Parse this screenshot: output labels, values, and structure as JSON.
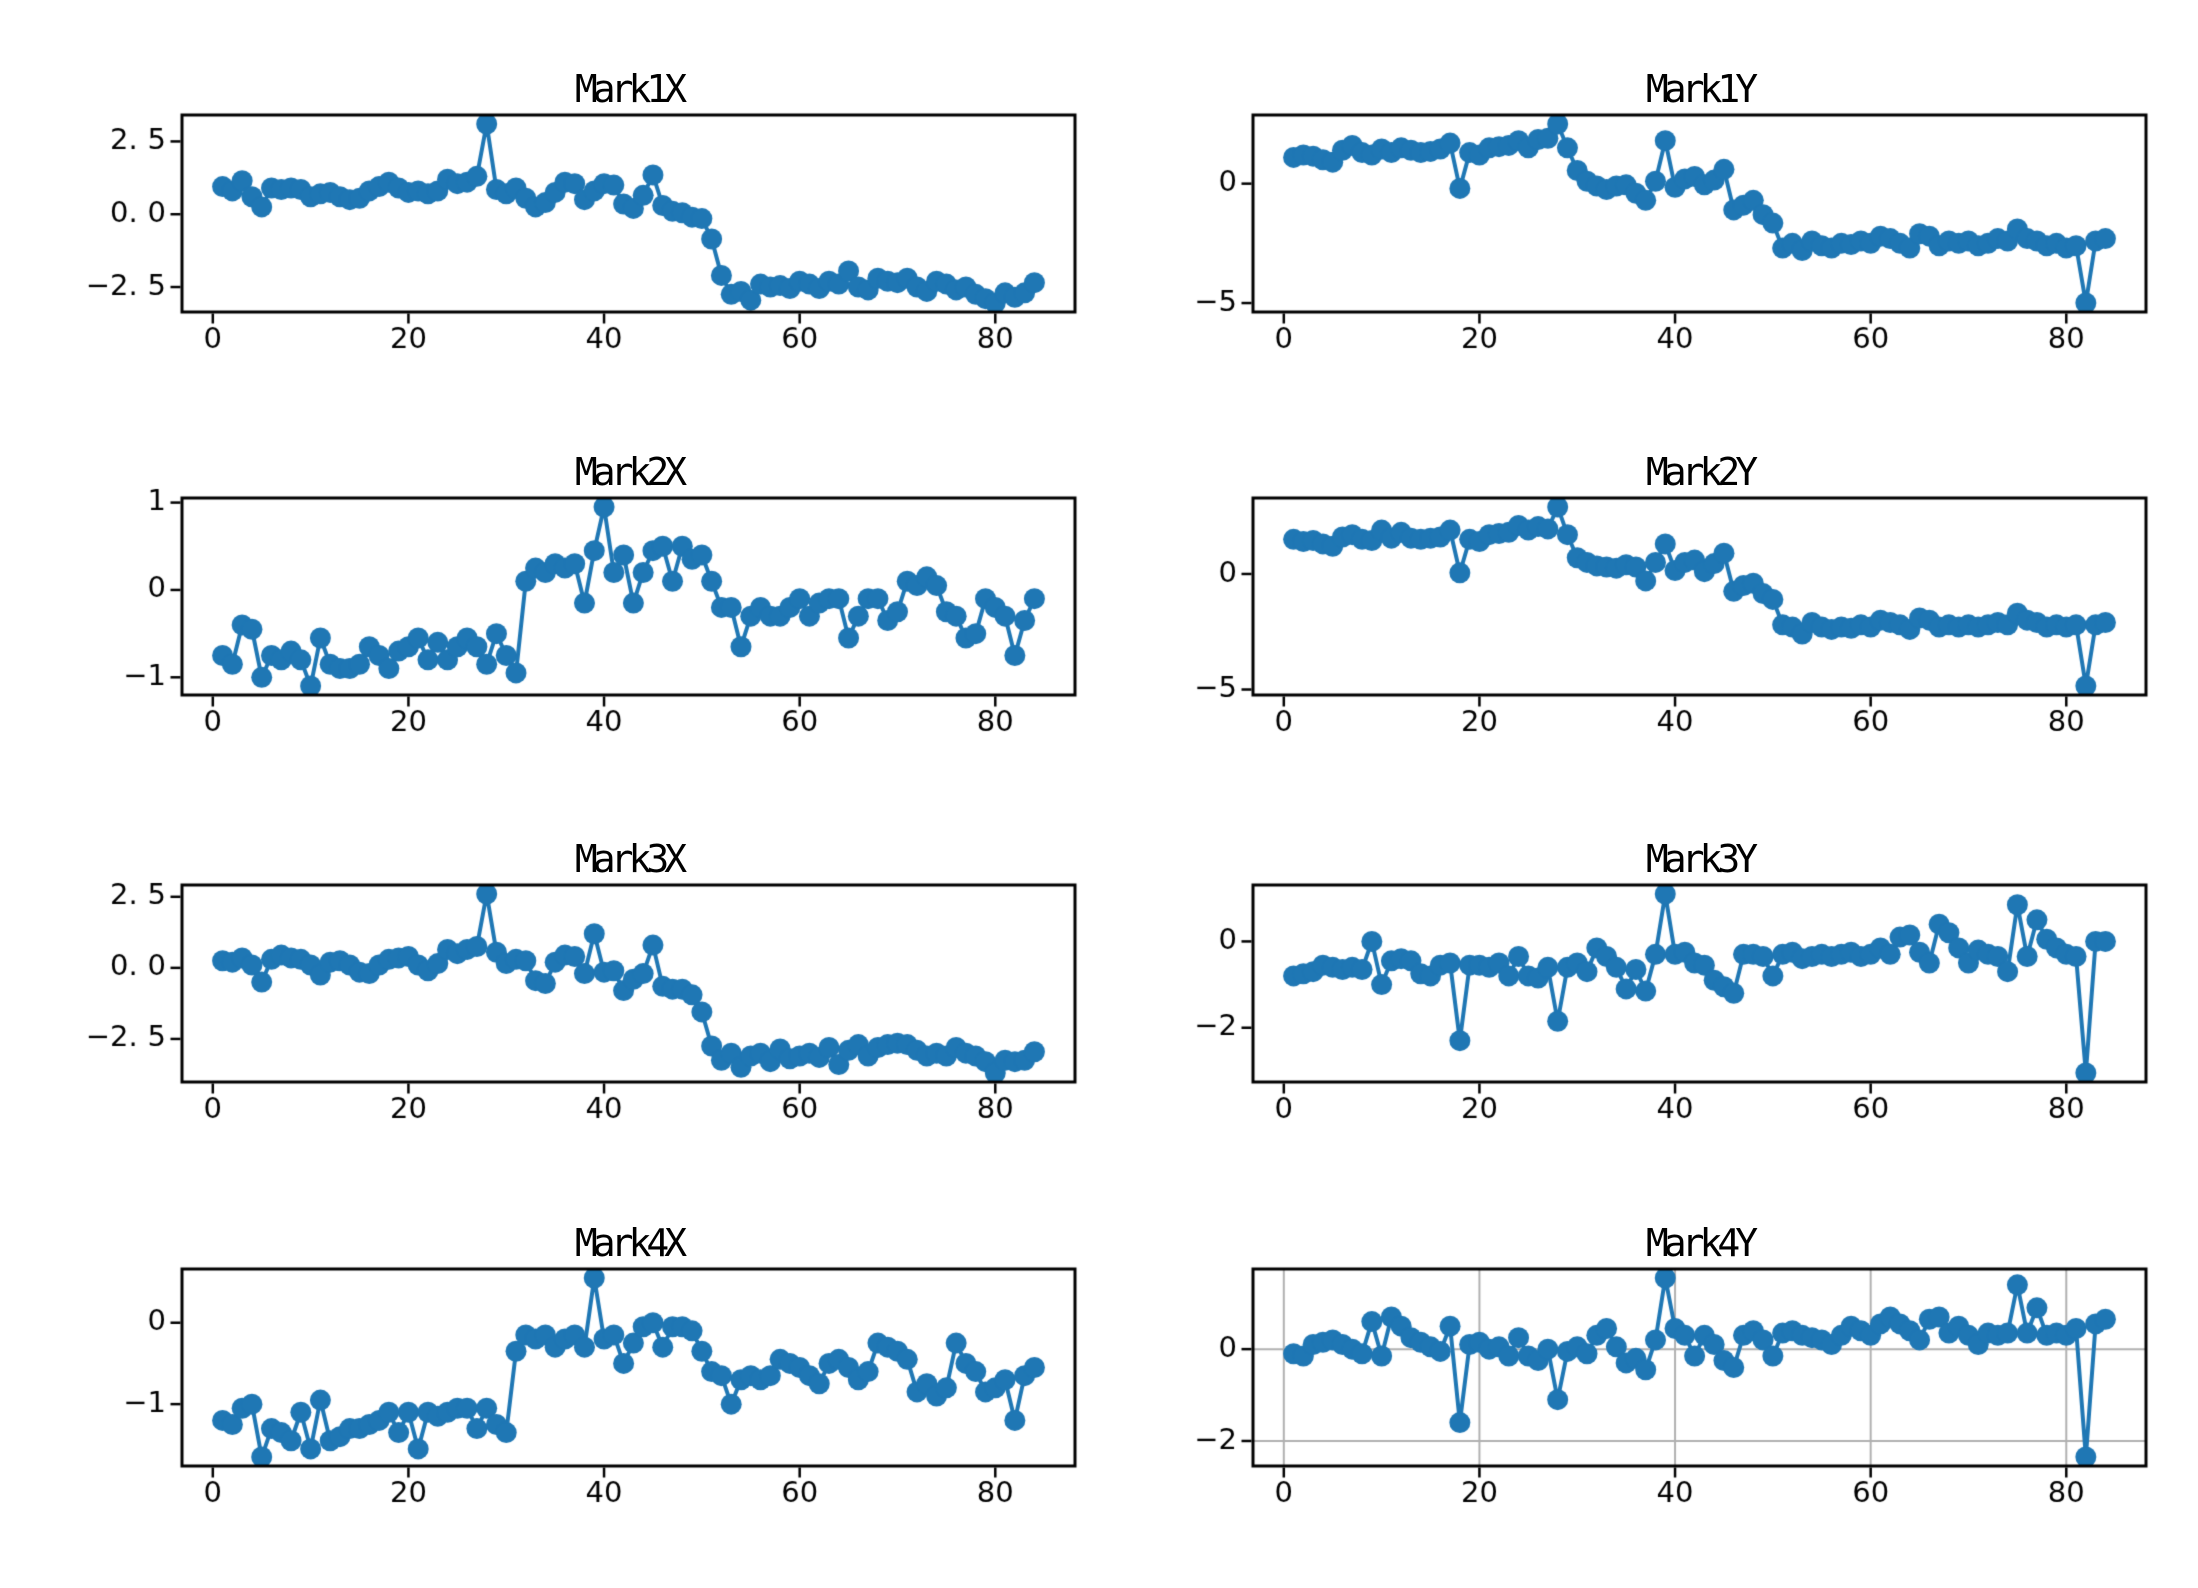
{
  "figure": {
    "background": "#ffffff",
    "line_color": "#1f77b4",
    "grid_color": "#b0b0b0",
    "axis_color": "#000000"
  },
  "chart_data": [
    {
      "id": "mark1x",
      "type": "line",
      "title": "Mark1X",
      "x_range": [
        1,
        84
      ],
      "xticks": [
        0,
        20,
        40,
        60,
        80
      ],
      "xtick_labels": [
        "0",
        "20",
        "40",
        "60",
        "80"
      ],
      "yticks": [
        2.5,
        0,
        -2.5
      ],
      "ytick_labels": [
        "2.5",
        "0.0",
        "-2.5"
      ],
      "grid": false,
      "values": [
        0.95,
        0.8,
        1.15,
        0.6,
        0.25,
        0.9,
        0.85,
        0.9,
        0.85,
        0.6,
        0.7,
        0.75,
        0.6,
        0.5,
        0.55,
        0.8,
        0.95,
        1.1,
        0.9,
        0.75,
        0.8,
        0.7,
        0.8,
        1.2,
        1.05,
        1.1,
        1.3,
        3.1,
        0.85,
        0.7,
        0.9,
        0.55,
        0.25,
        0.4,
        0.75,
        1.1,
        1.05,
        0.5,
        0.8,
        1.05,
        1.0,
        0.35,
        0.2,
        0.65,
        1.35,
        0.3,
        0.1,
        0.05,
        -0.1,
        -0.15,
        -0.85,
        -2.1,
        -2.75,
        -2.65,
        -2.95,
        -2.4,
        -2.5,
        -2.45,
        -2.55,
        -2.3,
        -2.4,
        -2.55,
        -2.3,
        -2.4,
        -1.95,
        -2.5,
        -2.6,
        -2.2,
        -2.3,
        -2.35,
        -2.2,
        -2.5,
        -2.65,
        -2.3,
        -2.4,
        -2.6,
        -2.5,
        -2.75,
        -2.9,
        -3.05,
        -2.7,
        -2.85,
        -2.7,
        -2.35
      ]
    },
    {
      "id": "mark1y",
      "type": "line",
      "title": "Mark1Y",
      "x_range": [
        1,
        84
      ],
      "xticks": [
        0,
        20,
        40,
        60,
        80
      ],
      "xtick_labels": [
        "0",
        "20",
        "40",
        "60",
        "80"
      ],
      "yticks": [
        0,
        -5
      ],
      "ytick_labels": [
        "0",
        "-5"
      ],
      "grid": false,
      "values": [
        1.1,
        1.2,
        1.15,
        1.0,
        0.9,
        1.4,
        1.6,
        1.3,
        1.2,
        1.45,
        1.3,
        1.5,
        1.4,
        1.3,
        1.35,
        1.45,
        1.7,
        -0.2,
        1.3,
        1.2,
        1.5,
        1.55,
        1.6,
        1.8,
        1.5,
        1.85,
        1.9,
        2.5,
        1.5,
        0.55,
        0.1,
        -0.1,
        -0.25,
        -0.1,
        -0.05,
        -0.4,
        -0.7,
        0.1,
        1.8,
        -0.15,
        0.2,
        0.3,
        -0.05,
        0.15,
        0.6,
        -1.1,
        -0.9,
        -0.7,
        -1.3,
        -1.65,
        -2.7,
        -2.5,
        -2.8,
        -2.4,
        -2.6,
        -2.7,
        -2.5,
        -2.55,
        -2.4,
        -2.5,
        -2.2,
        -2.3,
        -2.5,
        -2.7,
        -2.1,
        -2.2,
        -2.6,
        -2.4,
        -2.5,
        -2.4,
        -2.6,
        -2.5,
        -2.3,
        -2.4,
        -1.9,
        -2.3,
        -2.4,
        -2.6,
        -2.5,
        -2.7,
        -2.6,
        -5.0,
        -2.4,
        -2.3
      ]
    },
    {
      "id": "mark2x",
      "type": "line",
      "title": "Mark2X",
      "x_range": [
        1,
        84
      ],
      "xticks": [
        0,
        20,
        40,
        60,
        80
      ],
      "xtick_labels": [
        "0",
        "20",
        "40",
        "60",
        "80"
      ],
      "yticks": [
        1,
        0,
        -1
      ],
      "ytick_labels": [
        "1",
        "0",
        "-1"
      ],
      "grid": false,
      "values": [
        -0.75,
        -0.85,
        -0.4,
        -0.45,
        -1.0,
        -0.75,
        -0.8,
        -0.7,
        -0.8,
        -1.1,
        -0.55,
        -0.85,
        -0.9,
        -0.9,
        -0.85,
        -0.65,
        -0.75,
        -0.9,
        -0.7,
        -0.65,
        -0.55,
        -0.8,
        -0.6,
        -0.8,
        -0.65,
        -0.55,
        -0.65,
        -0.85,
        -0.5,
        -0.75,
        -0.95,
        0.1,
        0.25,
        0.2,
        0.3,
        0.25,
        0.3,
        -0.15,
        0.45,
        0.95,
        0.2,
        0.4,
        -0.15,
        0.2,
        0.45,
        0.5,
        0.1,
        0.5,
        0.35,
        0.4,
        0.1,
        -0.2,
        -0.2,
        -0.65,
        -0.3,
        -0.2,
        -0.3,
        -0.3,
        -0.2,
        -0.1,
        -0.3,
        -0.15,
        -0.1,
        -0.1,
        -0.55,
        -0.3,
        -0.1,
        -0.1,
        -0.35,
        -0.25,
        0.1,
        0.05,
        0.15,
        0.05,
        -0.25,
        -0.3,
        -0.55,
        -0.5,
        -0.1,
        -0.2,
        -0.3,
        -0.75,
        -0.35,
        -0.1
      ]
    },
    {
      "id": "mark2y",
      "type": "line",
      "title": "Mark2Y",
      "x_range": [
        1,
        84
      ],
      "xticks": [
        0,
        20,
        40,
        60,
        80
      ],
      "xtick_labels": [
        "0",
        "20",
        "40",
        "60",
        "80"
      ],
      "yticks": [
        0,
        -5
      ],
      "ytick_labels": [
        "0",
        "-5"
      ],
      "grid": false,
      "values": [
        1.5,
        1.4,
        1.45,
        1.3,
        1.2,
        1.6,
        1.7,
        1.5,
        1.45,
        1.9,
        1.55,
        1.8,
        1.55,
        1.5,
        1.55,
        1.6,
        1.9,
        0.05,
        1.5,
        1.4,
        1.7,
        1.75,
        1.8,
        2.1,
        1.9,
        2.05,
        1.95,
        2.9,
        1.7,
        0.7,
        0.5,
        0.35,
        0.3,
        0.25,
        0.4,
        0.3,
        -0.3,
        0.5,
        1.3,
        0.15,
        0.5,
        0.6,
        0.1,
        0.45,
        0.9,
        -0.75,
        -0.5,
        -0.4,
        -0.85,
        -1.1,
        -2.2,
        -2.3,
        -2.6,
        -2.1,
        -2.3,
        -2.4,
        -2.3,
        -2.35,
        -2.2,
        -2.3,
        -2.0,
        -2.1,
        -2.2,
        -2.4,
        -1.9,
        -2.0,
        -2.3,
        -2.2,
        -2.3,
        -2.2,
        -2.3,
        -2.2,
        -2.1,
        -2.2,
        -1.7,
        -2.0,
        -2.1,
        -2.3,
        -2.2,
        -2.3,
        -2.2,
        -4.85,
        -2.2,
        -2.1
      ]
    },
    {
      "id": "mark3x",
      "type": "line",
      "title": "Mark3X",
      "x_range": [
        1,
        84
      ],
      "xticks": [
        0,
        20,
        40,
        60,
        80
      ],
      "xtick_labels": [
        "0",
        "20",
        "40",
        "60",
        "80"
      ],
      "yticks": [
        2.5,
        0,
        -2.5
      ],
      "ytick_labels": [
        "2.5",
        "0.0",
        "-2.5"
      ],
      "grid": false,
      "values": [
        0.25,
        0.2,
        0.35,
        0.1,
        -0.5,
        0.3,
        0.45,
        0.35,
        0.3,
        0.1,
        -0.25,
        0.2,
        0.25,
        0.1,
        -0.15,
        -0.2,
        0.1,
        0.3,
        0.35,
        0.4,
        0.1,
        -0.1,
        0.15,
        0.65,
        0.5,
        0.65,
        0.75,
        2.6,
        0.55,
        0.15,
        0.3,
        0.25,
        -0.45,
        -0.55,
        0.2,
        0.45,
        0.4,
        -0.2,
        1.2,
        -0.15,
        -0.1,
        -0.8,
        -0.4,
        -0.2,
        0.8,
        -0.65,
        -0.75,
        -0.75,
        -0.95,
        -1.55,
        -2.75,
        -3.25,
        -3.0,
        -3.5,
        -3.1,
        -3.0,
        -3.3,
        -2.85,
        -3.2,
        -3.1,
        -3.0,
        -3.15,
        -2.8,
        -3.4,
        -2.9,
        -2.7,
        -3.1,
        -2.8,
        -2.7,
        -2.65,
        -2.7,
        -2.9,
        -3.1,
        -3.0,
        -3.1,
        -2.8,
        -3.0,
        -3.1,
        -3.3,
        -3.7,
        -3.25,
        -3.3,
        -3.25,
        -2.95
      ]
    },
    {
      "id": "mark3y",
      "type": "line",
      "title": "Mark3Y",
      "x_range": [
        1,
        84
      ],
      "xticks": [
        0,
        20,
        40,
        60,
        80
      ],
      "xtick_labels": [
        "0",
        "20",
        "40",
        "60",
        "80"
      ],
      "yticks": [
        0,
        -2
      ],
      "ytick_labels": [
        "0",
        "-2"
      ],
      "grid": false,
      "values": [
        -0.8,
        -0.75,
        -0.7,
        -0.55,
        -0.6,
        -0.65,
        -0.6,
        -0.65,
        0.0,
        -1.0,
        -0.45,
        -0.4,
        -0.45,
        -0.75,
        -0.8,
        -0.55,
        -0.5,
        -2.3,
        -0.55,
        -0.55,
        -0.6,
        -0.5,
        -0.8,
        -0.35,
        -0.8,
        -0.85,
        -0.6,
        -1.85,
        -0.6,
        -0.5,
        -0.7,
        -0.15,
        -0.35,
        -0.6,
        -1.1,
        -0.65,
        -1.15,
        -0.3,
        1.1,
        -0.3,
        -0.25,
        -0.5,
        -0.55,
        -0.9,
        -1.05,
        -1.2,
        -0.3,
        -0.3,
        -0.35,
        -0.8,
        -0.3,
        -0.25,
        -0.4,
        -0.35,
        -0.3,
        -0.35,
        -0.3,
        -0.25,
        -0.35,
        -0.3,
        -0.15,
        -0.3,
        0.1,
        0.15,
        -0.25,
        -0.5,
        0.4,
        0.2,
        -0.15,
        -0.5,
        -0.2,
        -0.3,
        -0.35,
        -0.7,
        0.85,
        -0.35,
        0.5,
        0.05,
        -0.15,
        -0.3,
        -0.35,
        -3.05,
        0.0,
        0.0
      ]
    },
    {
      "id": "mark4x",
      "type": "line",
      "title": "Mark4X",
      "x_range": [
        1,
        84
      ],
      "xticks": [
        0,
        20,
        40,
        60,
        80
      ],
      "xtick_labels": [
        "0",
        "20",
        "40",
        "60",
        "80"
      ],
      "yticks": [
        0,
        -1
      ],
      "ytick_labels": [
        "0",
        "-1"
      ],
      "grid": false,
      "values": [
        -1.2,
        -1.25,
        -1.05,
        -1.0,
        -1.65,
        -1.3,
        -1.35,
        -1.45,
        -1.1,
        -1.55,
        -0.95,
        -1.45,
        -1.4,
        -1.3,
        -1.3,
        -1.25,
        -1.2,
        -1.1,
        -1.35,
        -1.1,
        -1.55,
        -1.1,
        -1.15,
        -1.1,
        -1.05,
        -1.05,
        -1.3,
        -1.05,
        -1.25,
        -1.35,
        -0.35,
        -0.15,
        -0.2,
        -0.15,
        -0.3,
        -0.2,
        -0.15,
        -0.3,
        0.55,
        -0.2,
        -0.15,
        -0.5,
        -0.25,
        -0.05,
        0.0,
        -0.3,
        -0.05,
        -0.05,
        -0.1,
        -0.35,
        -0.6,
        -0.65,
        -1.0,
        -0.7,
        -0.65,
        -0.7,
        -0.65,
        -0.45,
        -0.5,
        -0.55,
        -0.65,
        -0.75,
        -0.5,
        -0.45,
        -0.55,
        -0.7,
        -0.6,
        -0.25,
        -0.3,
        -0.35,
        -0.45,
        -0.85,
        -0.75,
        -0.9,
        -0.8,
        -0.25,
        -0.5,
        -0.6,
        -0.85,
        -0.8,
        -0.7,
        -1.2,
        -0.65,
        -0.55
      ]
    },
    {
      "id": "mark4y",
      "type": "line",
      "title": "Mark4Y",
      "x_range": [
        1,
        84
      ],
      "xticks": [
        0,
        20,
        40,
        60,
        80
      ],
      "xtick_labels": [
        "0",
        "20",
        "40",
        "60",
        "80"
      ],
      "yticks": [
        0,
        -2
      ],
      "ytick_labels": [
        "0",
        "-2"
      ],
      "grid": true,
      "values": [
        -0.1,
        -0.15,
        0.1,
        0.15,
        0.2,
        0.1,
        0.0,
        -0.1,
        0.6,
        -0.15,
        0.7,
        0.5,
        0.25,
        0.15,
        0.05,
        -0.05,
        0.5,
        -1.6,
        0.1,
        0.15,
        0.0,
        0.05,
        -0.15,
        0.25,
        -0.15,
        -0.25,
        0.0,
        -1.1,
        -0.05,
        0.05,
        -0.1,
        0.3,
        0.45,
        0.05,
        -0.3,
        -0.2,
        -0.45,
        0.2,
        1.55,
        0.45,
        0.3,
        -0.15,
        0.3,
        0.1,
        -0.25,
        -0.4,
        0.3,
        0.4,
        0.2,
        -0.15,
        0.35,
        0.4,
        0.3,
        0.25,
        0.2,
        0.1,
        0.3,
        0.5,
        0.4,
        0.3,
        0.55,
        0.7,
        0.55,
        0.4,
        0.2,
        0.65,
        0.7,
        0.35,
        0.5,
        0.3,
        0.1,
        0.35,
        0.3,
        0.35,
        1.4,
        0.35,
        0.9,
        0.3,
        0.35,
        0.3,
        0.45,
        -2.35,
        0.55,
        0.65
      ]
    }
  ]
}
